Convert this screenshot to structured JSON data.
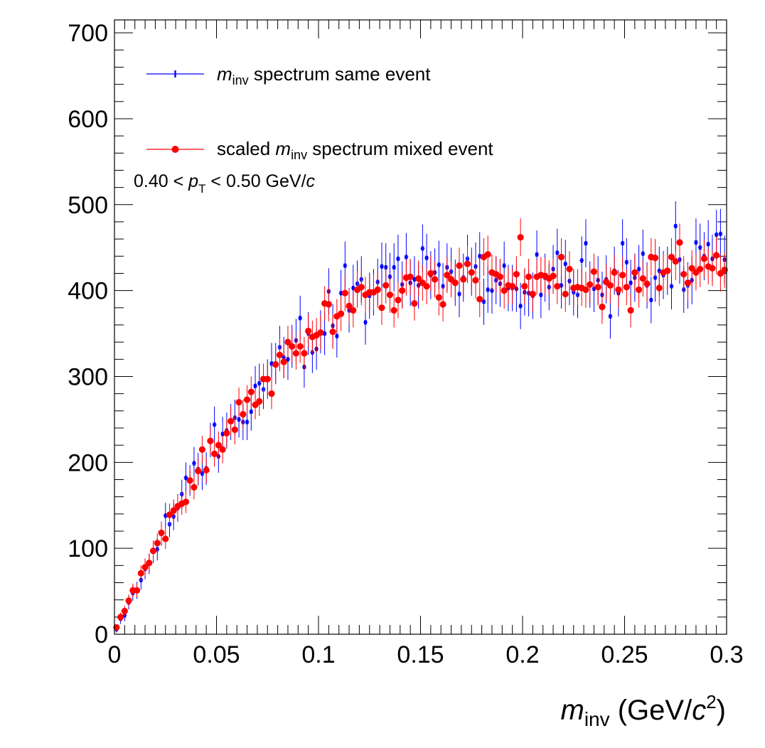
{
  "chart_data": {
    "type": "scatter",
    "title": "",
    "xlabel_base": "m",
    "xlabel_sub": "inv",
    "xlabel_unit_pre": " (GeV/",
    "xlabel_unit_c": "c",
    "xlabel_unit_sup": "2",
    "xlabel_unit_post": ")",
    "xlim": [
      0,
      0.3
    ],
    "ylim": [
      0,
      715
    ],
    "x_ticks": [
      "0",
      "0.05",
      "0.1",
      "0.15",
      "0.2",
      "0.25",
      "0.3"
    ],
    "x_tick_values": [
      0,
      0.05,
      0.1,
      0.15,
      0.2,
      0.25,
      0.3
    ],
    "y_ticks": [
      "0",
      "100",
      "200",
      "300",
      "400",
      "500",
      "600",
      "700"
    ],
    "y_tick_values": [
      0,
      100,
      200,
      300,
      400,
      500,
      600,
      700
    ],
    "grid": false,
    "legend_position": "top-left",
    "annotation": {
      "pre": "0.40 < ",
      "p": "p",
      "sub": "T",
      "post": " < 0.50 GeV/",
      "c": "c"
    },
    "series": [
      {
        "legend_pre": "",
        "legend_m": "m",
        "legend_sub": "inv",
        "legend_post": " spectrum same event",
        "color": "#0000ff",
        "marker": "cross",
        "x": [
          0.001,
          0.003,
          0.005,
          0.007,
          0.009,
          0.011,
          0.013,
          0.015,
          0.017,
          0.019,
          0.021,
          0.023,
          0.025,
          0.027,
          0.029,
          0.031,
          0.033,
          0.035,
          0.037,
          0.039,
          0.041,
          0.043,
          0.045,
          0.047,
          0.049,
          0.051,
          0.053,
          0.055,
          0.057,
          0.059,
          0.061,
          0.063,
          0.065,
          0.067,
          0.069,
          0.071,
          0.073,
          0.075,
          0.077,
          0.079,
          0.081,
          0.083,
          0.085,
          0.087,
          0.089,
          0.091,
          0.093,
          0.095,
          0.097,
          0.099,
          0.101,
          0.103,
          0.105,
          0.107,
          0.109,
          0.111,
          0.113,
          0.115,
          0.117,
          0.119,
          0.121,
          0.123,
          0.125,
          0.127,
          0.129,
          0.131,
          0.133,
          0.135,
          0.137,
          0.139,
          0.141,
          0.143,
          0.145,
          0.147,
          0.149,
          0.151,
          0.153,
          0.155,
          0.157,
          0.159,
          0.161,
          0.163,
          0.165,
          0.167,
          0.169,
          0.171,
          0.173,
          0.175,
          0.177,
          0.179,
          0.181,
          0.183,
          0.185,
          0.187,
          0.189,
          0.191,
          0.193,
          0.195,
          0.197,
          0.199,
          0.201,
          0.203,
          0.205,
          0.207,
          0.209,
          0.211,
          0.213,
          0.215,
          0.217,
          0.219,
          0.221,
          0.223,
          0.225,
          0.227,
          0.229,
          0.231,
          0.233,
          0.235,
          0.237,
          0.239,
          0.241,
          0.243,
          0.245,
          0.247,
          0.249,
          0.251,
          0.253,
          0.255,
          0.257,
          0.259,
          0.261,
          0.263,
          0.265,
          0.267,
          0.269,
          0.271,
          0.273,
          0.275,
          0.277,
          0.279,
          0.281,
          0.283,
          0.285,
          0.287,
          0.289,
          0.291,
          0.293,
          0.295,
          0.297,
          0.299
        ],
        "y": [
          6,
          18,
          22,
          37,
          48,
          51,
          63,
          76,
          82,
          96,
          99,
          117,
          138,
          128,
          137,
          147,
          163,
          182,
          179,
          199,
          192,
          187,
          193,
          226,
          244,
          207,
          233,
          237,
          247,
          252,
          250,
          247,
          247,
          259,
          289,
          292,
          285,
          297,
          315,
          315,
          334,
          322,
          320,
          335,
          342,
          368,
          311,
          350,
          328,
          332,
          352,
          350,
          399,
          359,
          347,
          397,
          429,
          377,
          403,
          408,
          413,
          363,
          394,
          398,
          410,
          428,
          427,
          416,
          427,
          437,
          407,
          439,
          409,
          413,
          406,
          449,
          438,
          418,
          421,
          430,
          405,
          427,
          422,
          409,
          396,
          415,
          437,
          422,
          428,
          440,
          387,
          401,
          400,
          412,
          408,
          429,
          403,
          403,
          402,
          382,
          398,
          397,
          394,
          442,
          395,
          415,
          404,
          425,
          444,
          406,
          431,
          411,
          398,
          395,
          435,
          455,
          407,
          402,
          412,
          395,
          413,
          370,
          423,
          397,
          455,
          433,
          409,
          415,
          425,
          443,
          406,
          389,
          415,
          423,
          418,
          423,
          405,
          475,
          436,
          401,
          406,
          412,
          456,
          450,
          440,
          454,
          437,
          465,
          466,
          436
        ],
        "err": [
          4,
          6,
          7,
          8,
          9,
          10,
          11,
          12,
          12,
          13,
          13,
          14,
          15,
          15,
          16,
          16,
          17,
          18,
          18,
          19,
          19,
          19,
          19,
          20,
          21,
          19,
          20,
          21,
          21,
          21,
          21,
          21,
          21,
          22,
          23,
          23,
          23,
          23,
          24,
          24,
          25,
          24,
          24,
          25,
          25,
          26,
          24,
          25,
          24,
          24,
          25,
          25,
          27,
          25,
          25,
          27,
          28,
          26,
          27,
          27,
          27,
          26,
          27,
          27,
          27,
          28,
          28,
          28,
          28,
          28,
          27,
          28,
          27,
          27,
          27,
          28,
          28,
          28,
          28,
          28,
          27,
          28,
          28,
          27,
          27,
          28,
          28,
          28,
          28,
          28,
          27,
          27,
          27,
          28,
          27,
          28,
          27,
          27,
          27,
          27,
          27,
          27,
          27,
          28,
          27,
          28,
          27,
          28,
          28,
          27,
          28,
          28,
          27,
          27,
          28,
          28,
          27,
          27,
          28,
          27,
          28,
          26,
          28,
          27,
          28,
          28,
          27,
          28,
          28,
          28,
          27,
          27,
          28,
          28,
          28,
          28,
          27,
          29,
          28,
          27,
          27,
          28,
          28,
          28,
          28,
          28,
          28,
          29,
          29,
          28
        ]
      },
      {
        "legend_pre": "scaled ",
        "legend_m": "m",
        "legend_sub": "inv",
        "legend_post": " spectrum mixed event",
        "color": "#ff0000",
        "marker": "circle",
        "x": [
          0.001,
          0.003,
          0.005,
          0.007,
          0.009,
          0.011,
          0.013,
          0.015,
          0.017,
          0.019,
          0.021,
          0.023,
          0.025,
          0.027,
          0.029,
          0.031,
          0.033,
          0.035,
          0.037,
          0.039,
          0.041,
          0.043,
          0.045,
          0.047,
          0.049,
          0.051,
          0.053,
          0.055,
          0.057,
          0.059,
          0.061,
          0.063,
          0.065,
          0.067,
          0.069,
          0.071,
          0.073,
          0.075,
          0.077,
          0.079,
          0.081,
          0.083,
          0.085,
          0.087,
          0.089,
          0.091,
          0.093,
          0.095,
          0.097,
          0.099,
          0.101,
          0.103,
          0.105,
          0.107,
          0.109,
          0.111,
          0.113,
          0.115,
          0.117,
          0.119,
          0.121,
          0.123,
          0.125,
          0.127,
          0.129,
          0.131,
          0.133,
          0.135,
          0.137,
          0.139,
          0.141,
          0.143,
          0.145,
          0.147,
          0.149,
          0.151,
          0.153,
          0.155,
          0.157,
          0.159,
          0.161,
          0.163,
          0.165,
          0.167,
          0.169,
          0.171,
          0.173,
          0.175,
          0.177,
          0.179,
          0.181,
          0.183,
          0.185,
          0.187,
          0.189,
          0.191,
          0.193,
          0.195,
          0.197,
          0.199,
          0.201,
          0.203,
          0.205,
          0.207,
          0.209,
          0.211,
          0.213,
          0.215,
          0.217,
          0.219,
          0.221,
          0.223,
          0.225,
          0.227,
          0.229,
          0.231,
          0.233,
          0.235,
          0.237,
          0.239,
          0.241,
          0.243,
          0.245,
          0.247,
          0.249,
          0.251,
          0.253,
          0.255,
          0.257,
          0.259,
          0.261,
          0.263,
          0.265,
          0.267,
          0.269,
          0.271,
          0.273,
          0.275,
          0.277,
          0.279,
          0.281,
          0.283,
          0.285,
          0.287,
          0.289,
          0.291,
          0.293,
          0.295,
          0.297,
          0.299
        ],
        "y": [
          8,
          20,
          27,
          39,
          51,
          51,
          71,
          78,
          83,
          97,
          106,
          118,
          111,
          139,
          144,
          149,
          152,
          154,
          179,
          171,
          190,
          215,
          191,
          225,
          210,
          220,
          215,
          234,
          248,
          238,
          270,
          256,
          273,
          282,
          267,
          271,
          297,
          297,
          280,
          314,
          325,
          317,
          340,
          335,
          327,
          335,
          327,
          353,
          346,
          348,
          351,
          385,
          384,
          352,
          370,
          373,
          397,
          382,
          377,
          401,
          404,
          395,
          398,
          398,
          401,
          380,
          406,
          395,
          377,
          389,
          400,
          415,
          416,
          385,
          414,
          409,
          405,
          420,
          413,
          392,
          384,
          418,
          413,
          409,
          429,
          413,
          431,
          421,
          412,
          390,
          439,
          442,
          421,
          419,
          416,
          400,
          406,
          405,
          419,
          462,
          405,
          416,
          396,
          416,
          418,
          417,
          414,
          417,
          405,
          439,
          396,
          425,
          403,
          404,
          403,
          401,
          407,
          422,
          404,
          381,
          410,
          406,
          421,
          401,
          418,
          404,
          377,
          421,
          401,
          414,
          408,
          439,
          438,
          403,
          421,
          423,
          439,
          434,
          456,
          419,
          409,
          426,
          421,
          425,
          437,
          428,
          426,
          441,
          420,
          424
        ],
        "err": [
          3,
          5,
          6,
          7,
          8,
          8,
          9,
          10,
          10,
          11,
          11,
          12,
          12,
          13,
          13,
          13,
          13,
          13,
          14,
          14,
          15,
          16,
          15,
          16,
          15,
          16,
          16,
          16,
          17,
          17,
          17,
          17,
          17,
          18,
          17,
          17,
          18,
          18,
          18,
          19,
          19,
          19,
          19,
          19,
          19,
          19,
          19,
          20,
          19,
          20,
          20,
          20,
          20,
          20,
          20,
          20,
          21,
          20,
          20,
          21,
          21,
          21,
          21,
          21,
          21,
          20,
          21,
          21,
          20,
          21,
          21,
          21,
          21,
          20,
          21,
          21,
          21,
          21,
          21,
          21,
          20,
          21,
          21,
          21,
          21,
          21,
          21,
          21,
          21,
          21,
          22,
          22,
          21,
          21,
          21,
          21,
          21,
          21,
          21,
          22,
          21,
          21,
          21,
          21,
          21,
          21,
          21,
          21,
          21,
          22,
          21,
          21,
          21,
          21,
          21,
          21,
          21,
          21,
          21,
          20,
          21,
          21,
          21,
          21,
          21,
          21,
          20,
          21,
          21,
          21,
          21,
          22,
          22,
          21,
          21,
          21,
          22,
          22,
          22,
          21,
          21,
          21,
          21,
          21,
          22,
          21,
          21,
          22,
          21,
          21
        ]
      }
    ]
  }
}
